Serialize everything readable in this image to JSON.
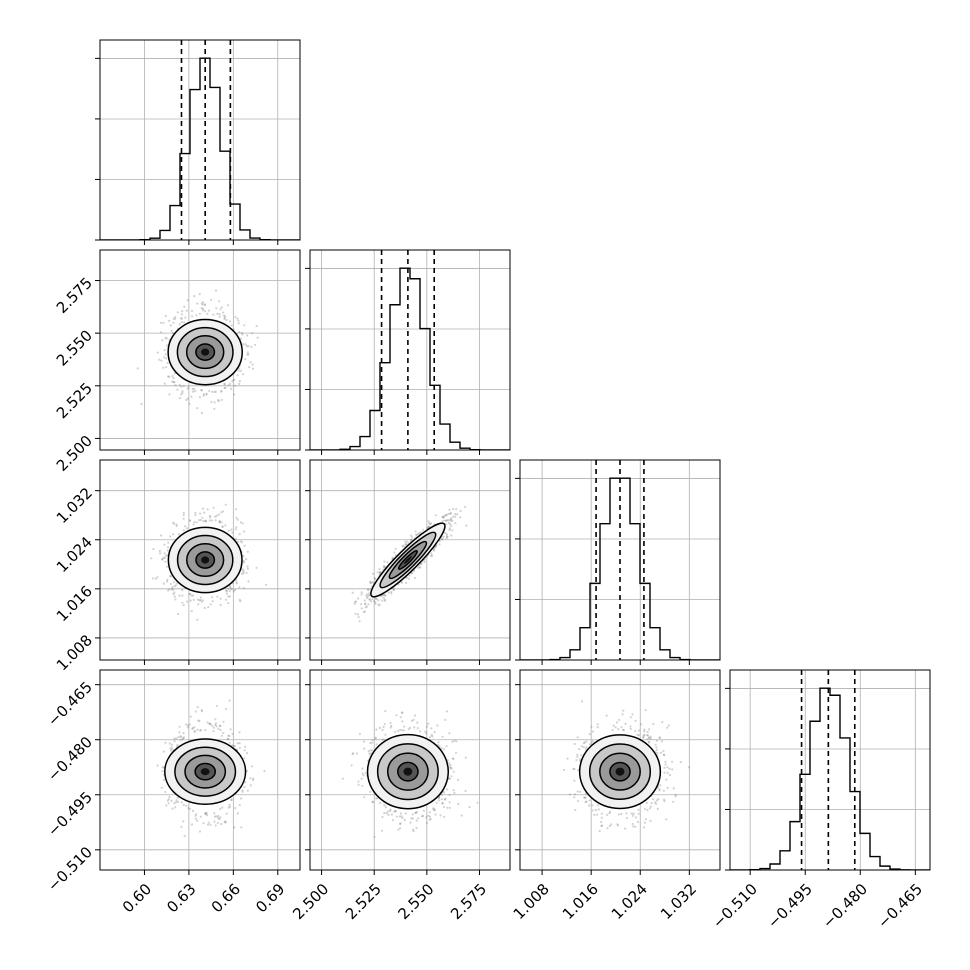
{
  "chart_data": {
    "type": "corner",
    "title": "",
    "grid": true,
    "params": [
      {
        "name": "",
        "range": [
          0.57,
          0.705
        ],
        "ticks": [
          0.6,
          0.63,
          0.66,
          0.69
        ],
        "tick_labels": [
          "0.60",
          "0.63",
          "0.66",
          "0.69"
        ],
        "mean": 0.641,
        "sd": 0.011,
        "quantiles": [
          0.625,
          0.641,
          0.658
        ]
      },
      {
        "name": "",
        "range": [
          2.4945,
          2.5895
        ],
        "ticks": [
          2.5,
          2.525,
          2.55,
          2.575
        ],
        "tick_labels": [
          "2.500",
          "2.525",
          "2.550",
          "2.575"
        ],
        "mean": 2.541,
        "sd": 0.0088,
        "quantiles": [
          2.5285,
          2.541,
          2.5535
        ]
      },
      {
        "name": "",
        "range": [
          1.0044,
          1.037
        ],
        "ticks": [
          1.008,
          1.016,
          1.024,
          1.032
        ],
        "tick_labels": [
          "1.008",
          "1.016",
          "1.024",
          "1.032"
        ],
        "mean": 1.0207,
        "sd": 0.003,
        "quantiles": [
          1.0168,
          1.0207,
          1.0246
        ]
      },
      {
        "name": "",
        "range": [
          -0.5155,
          -0.461
        ],
        "ticks": [
          -0.51,
          -0.495,
          -0.48,
          -0.465
        ],
        "tick_labels": [
          "−0.510",
          "−0.495",
          "−0.480",
          "−0.465"
        ],
        "mean": -0.4887,
        "sd": 0.0055,
        "quantiles": [
          -0.496,
          -0.4887,
          -0.4815
        ]
      }
    ],
    "correlations": {
      "0-1": 0.0,
      "0-2": 0.0,
      "0-3": 0.0,
      "1-2": 0.92,
      "1-3": 0.0,
      "2-3": 0.0
    },
    "histogram_bins": 20,
    "contour_levels_sigma": [
      0.5,
      1.0,
      1.5,
      2.0
    ],
    "colors": {
      "line": "#000000",
      "grid": "#b0b0b0",
      "points": "#7f7f7f"
    }
  }
}
